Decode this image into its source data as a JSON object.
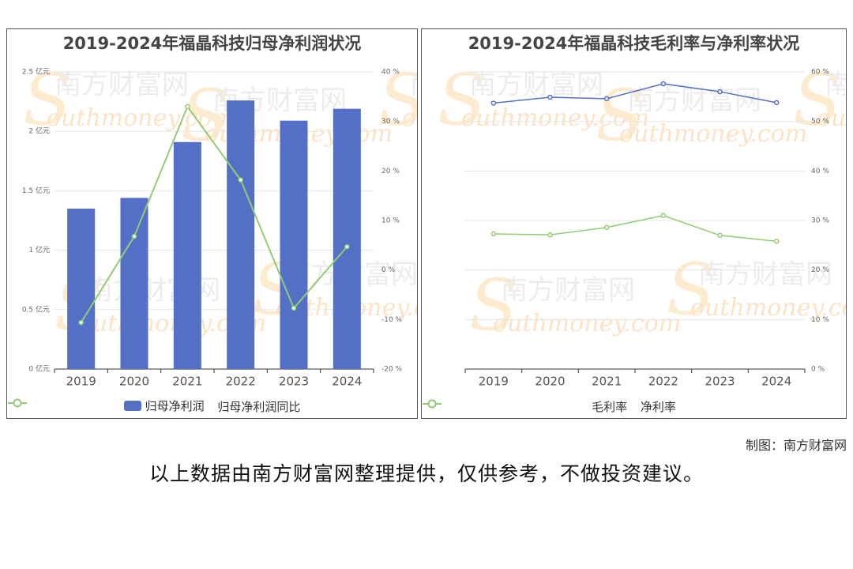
{
  "colors": {
    "bar": "#5470c6",
    "green": "#91cc75",
    "blue": "#5470c6",
    "axis": "#333333",
    "grid": "#e6e6e6"
  },
  "watermark": {
    "text_cn": "南方财富网",
    "text_en": "outhmoney.com",
    "letter": "S"
  },
  "chart_data": [
    {
      "type": "bar+line",
      "title": "2019-2024年福晶科技归母净利润状况",
      "categories": [
        "2019",
        "2020",
        "2021",
        "2022",
        "2023",
        "2024"
      ],
      "y_left": {
        "ticks": [
          "0 亿元",
          "0.5 亿元",
          "1 亿元",
          "1.5 亿元",
          "2 亿元",
          "2.5 亿元"
        ],
        "min": 0,
        "max": 2.5
      },
      "y_right": {
        "ticks": [
          "-20 %",
          "-10 %",
          "0 %",
          "10 %",
          "20 %",
          "30 %",
          "40 %"
        ],
        "min": -20,
        "max": 40
      },
      "series": [
        {
          "name": "归母净利润",
          "kind": "bar",
          "axis": "left",
          "values": [
            1.35,
            1.44,
            1.91,
            2.26,
            2.09,
            2.19
          ]
        },
        {
          "name": "归母净利润同比",
          "kind": "line",
          "axis": "right",
          "values": [
            -10.6,
            6.8,
            33.0,
            18.2,
            -7.7,
            4.7
          ]
        }
      ],
      "legend_position": "bottom",
      "grid": true
    },
    {
      "type": "line",
      "title": "2019-2024年福晶科技毛利率与净利率状况",
      "categories": [
        "2019",
        "2020",
        "2021",
        "2022",
        "2023",
        "2024"
      ],
      "y_right": {
        "ticks": [
          "0 %",
          "10 %",
          "20 %",
          "30 %",
          "40 %",
          "50 %",
          "60 %"
        ],
        "min": 0,
        "max": 60
      },
      "series": [
        {
          "name": "毛利率",
          "kind": "line",
          "axis": "right",
          "values": [
            53.7,
            54.9,
            54.6,
            57.6,
            56.0,
            53.8
          ]
        },
        {
          "name": "净利率",
          "kind": "line",
          "axis": "right",
          "values": [
            27.3,
            27.1,
            28.6,
            31.0,
            27.0,
            25.8
          ]
        }
      ],
      "legend_position": "bottom",
      "grid": true
    }
  ],
  "footer": {
    "credit": "制图：南方财富网",
    "disclaimer": "以上数据由南方财富网整理提供，仅供参考，不做投资建议。"
  }
}
